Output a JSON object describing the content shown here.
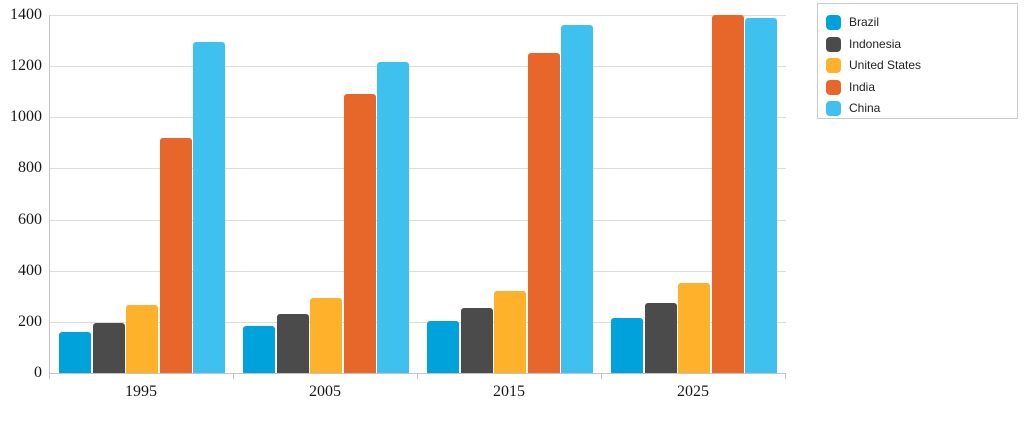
{
  "chart_data": {
    "type": "bar",
    "title": "",
    "xlabel": "",
    "ylabel": "",
    "categories": [
      "1995",
      "2005",
      "2015",
      "2025"
    ],
    "series": [
      {
        "name": "Brazil",
        "color": "#00A2DC",
        "values": [
          160,
          185,
          205,
          215
        ]
      },
      {
        "name": "Indonesia",
        "color": "#4B4B4B",
        "values": [
          197,
          230,
          255,
          275
        ]
      },
      {
        "name": "United States",
        "color": "#FEB22C",
        "values": [
          265,
          295,
          320,
          350
        ]
      },
      {
        "name": "India",
        "color": "#E7672B",
        "values": [
          920,
          1090,
          1250,
          1400
        ]
      },
      {
        "name": "China",
        "color": "#3FC1F0",
        "values": [
          1295,
          1215,
          1360,
          1390
        ]
      }
    ],
    "ylim": [
      0,
      1400
    ],
    "ytick_step": 200,
    "yticks": [
      "0",
      "200",
      "400",
      "600",
      "800",
      "1000",
      "1200",
      "1400"
    ],
    "grid": "horizontal",
    "legend_position": "top-right",
    "colors": {
      "gridline": "#dcdcdc",
      "axis_line": "#c3c3c3",
      "tick_label": "#161616",
      "legend_border": "#cbcbcb",
      "background": "#ffffff"
    }
  }
}
